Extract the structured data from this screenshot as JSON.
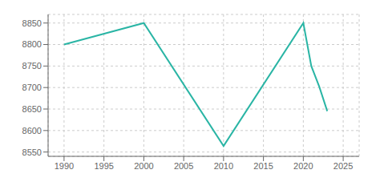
{
  "chart_data": {
    "type": "line",
    "x": [
      1990,
      2000,
      2010,
      2020,
      2021,
      2022,
      2023
    ],
    "values": [
      8800,
      8850,
      8564,
      8850,
      8750,
      8702,
      8645
    ],
    "color": "#2ab5a5",
    "xlim": [
      1988,
      2027
    ],
    "ylim": [
      8540,
      8870
    ],
    "xticks": [
      1990,
      1995,
      2000,
      2005,
      2010,
      2015,
      2020,
      2025
    ],
    "yticks": [
      8550,
      8600,
      8650,
      8700,
      8750,
      8800,
      8850
    ],
    "grid": true
  }
}
